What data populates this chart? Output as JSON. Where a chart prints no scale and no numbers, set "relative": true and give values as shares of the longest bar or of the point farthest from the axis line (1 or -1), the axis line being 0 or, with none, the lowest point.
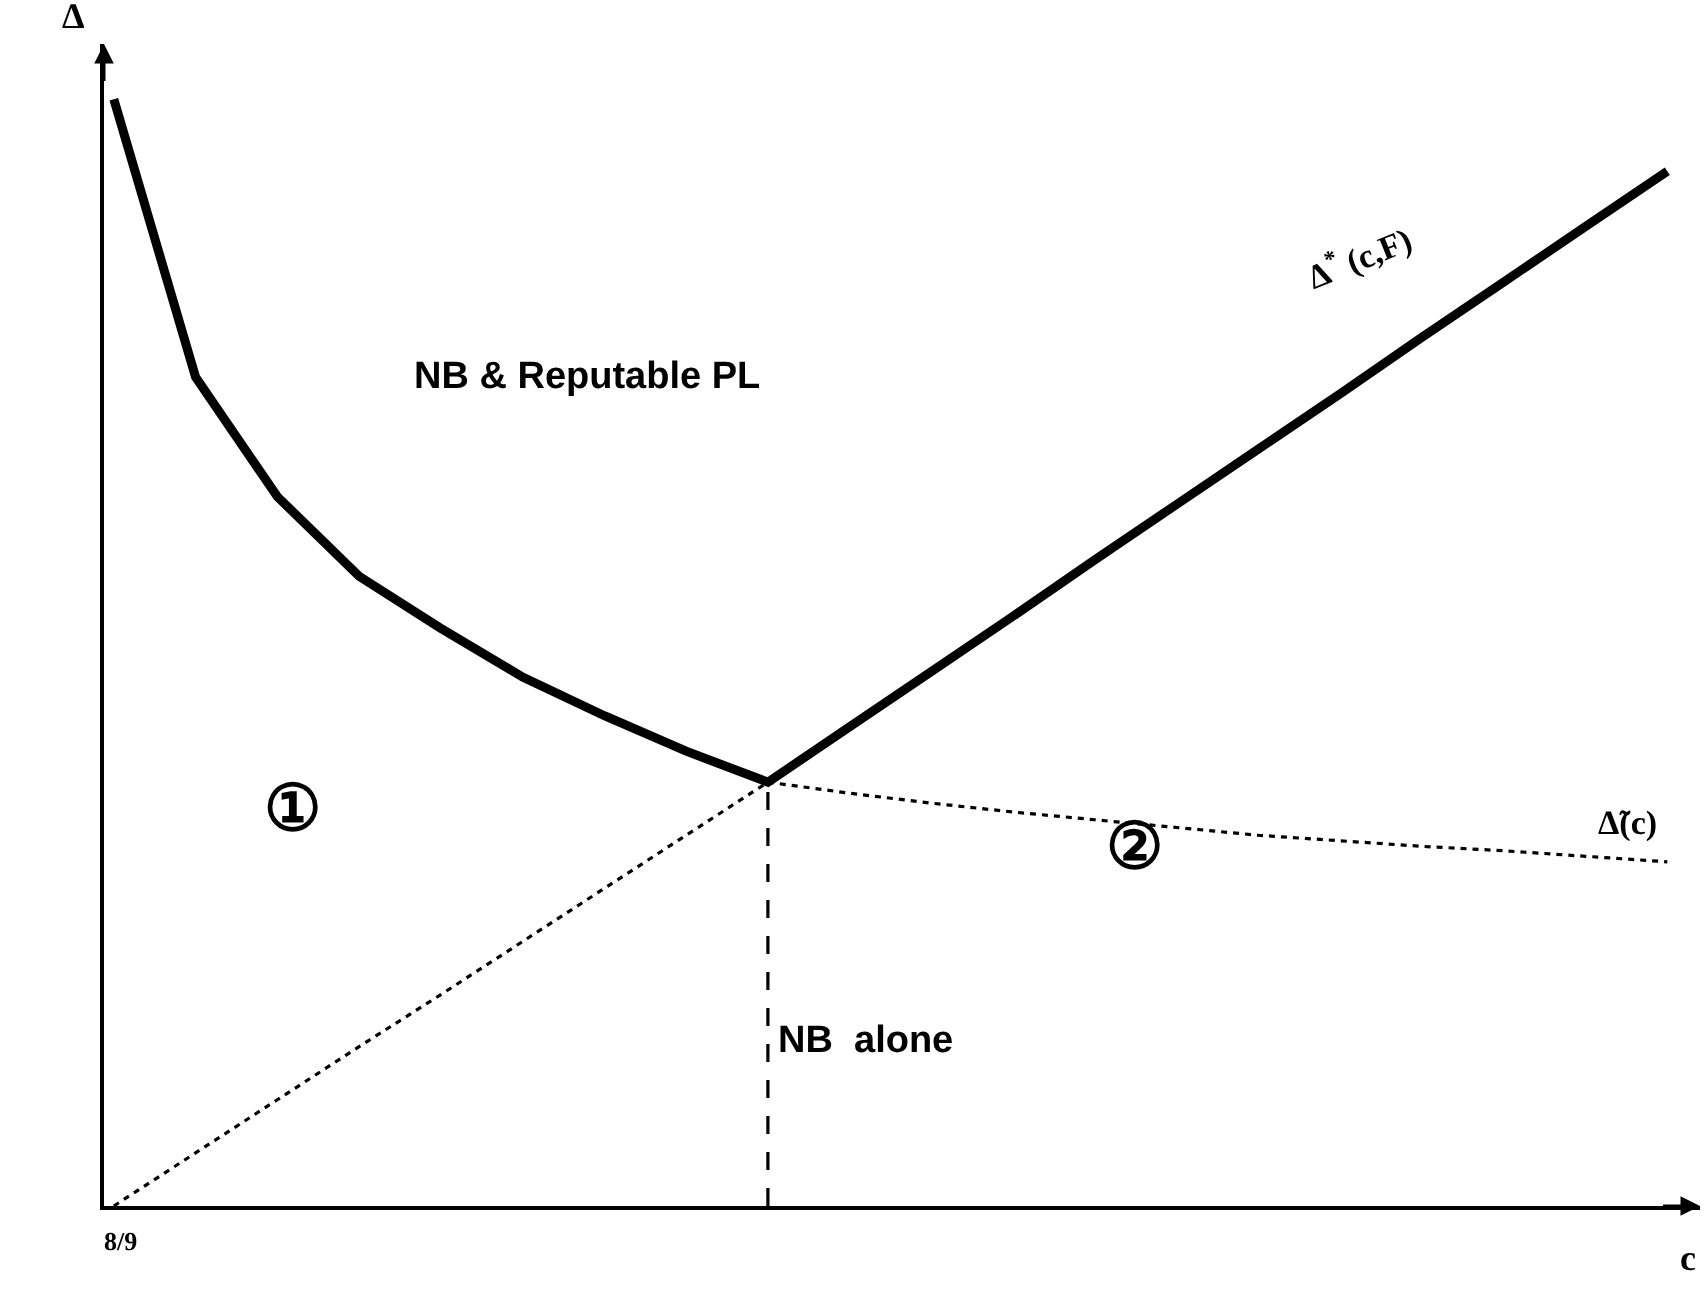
{
  "chart_data": {
    "type": "line",
    "relative": true,
    "xlabel": "c",
    "ylabel": "Δ",
    "categories": [
      null,
      null,
      null,
      null,
      null,
      null,
      null,
      null,
      null,
      null,
      null,
      null,
      null,
      null,
      null,
      null,
      null,
      null,
      null,
      null
    ],
    "series": [
      {
        "name": "Δ$^{*}$ (c,F)",
        "color": "#000000",
        "line_style": "solid",
        "values": [
          1,
          0.749,
          0.641,
          0.569,
          0.522,
          0.478,
          0.443,
          0.411,
          0.383,
          0.433,
          0.483,
          0.533,
          0.584,
          0.634,
          0.684,
          0.734,
          0.785,
          0.835,
          0.885,
          0.935
        ]
      },
      {
        "color": "#000000",
        "line_style": "dotted",
        "values": [
          0,
          0.048,
          0.096,
          0.144,
          0.191,
          0.239,
          0.287,
          0.335,
          0.383,
          null,
          null,
          null,
          null,
          null,
          null,
          null,
          null,
          null,
          null,
          null
        ]
      },
      {
        "name": "Δ̃(c)",
        "color": "#000000",
        "line_style": "dotted",
        "values": [
          null,
          null,
          null,
          null,
          null,
          null,
          null,
          null,
          0.383,
          0.373,
          0.364,
          0.356,
          0.349,
          0.342,
          0.335,
          0.33,
          0.325,
          0.321,
          0.316,
          0.311
        ]
      }
    ],
    "annotations": [
      "NB & Reputable PL",
      "NB  alone",
      "①",
      "②",
      "8/9"
    ],
    "grid": false,
    "legend": false,
    "marker": "none"
  }
}
